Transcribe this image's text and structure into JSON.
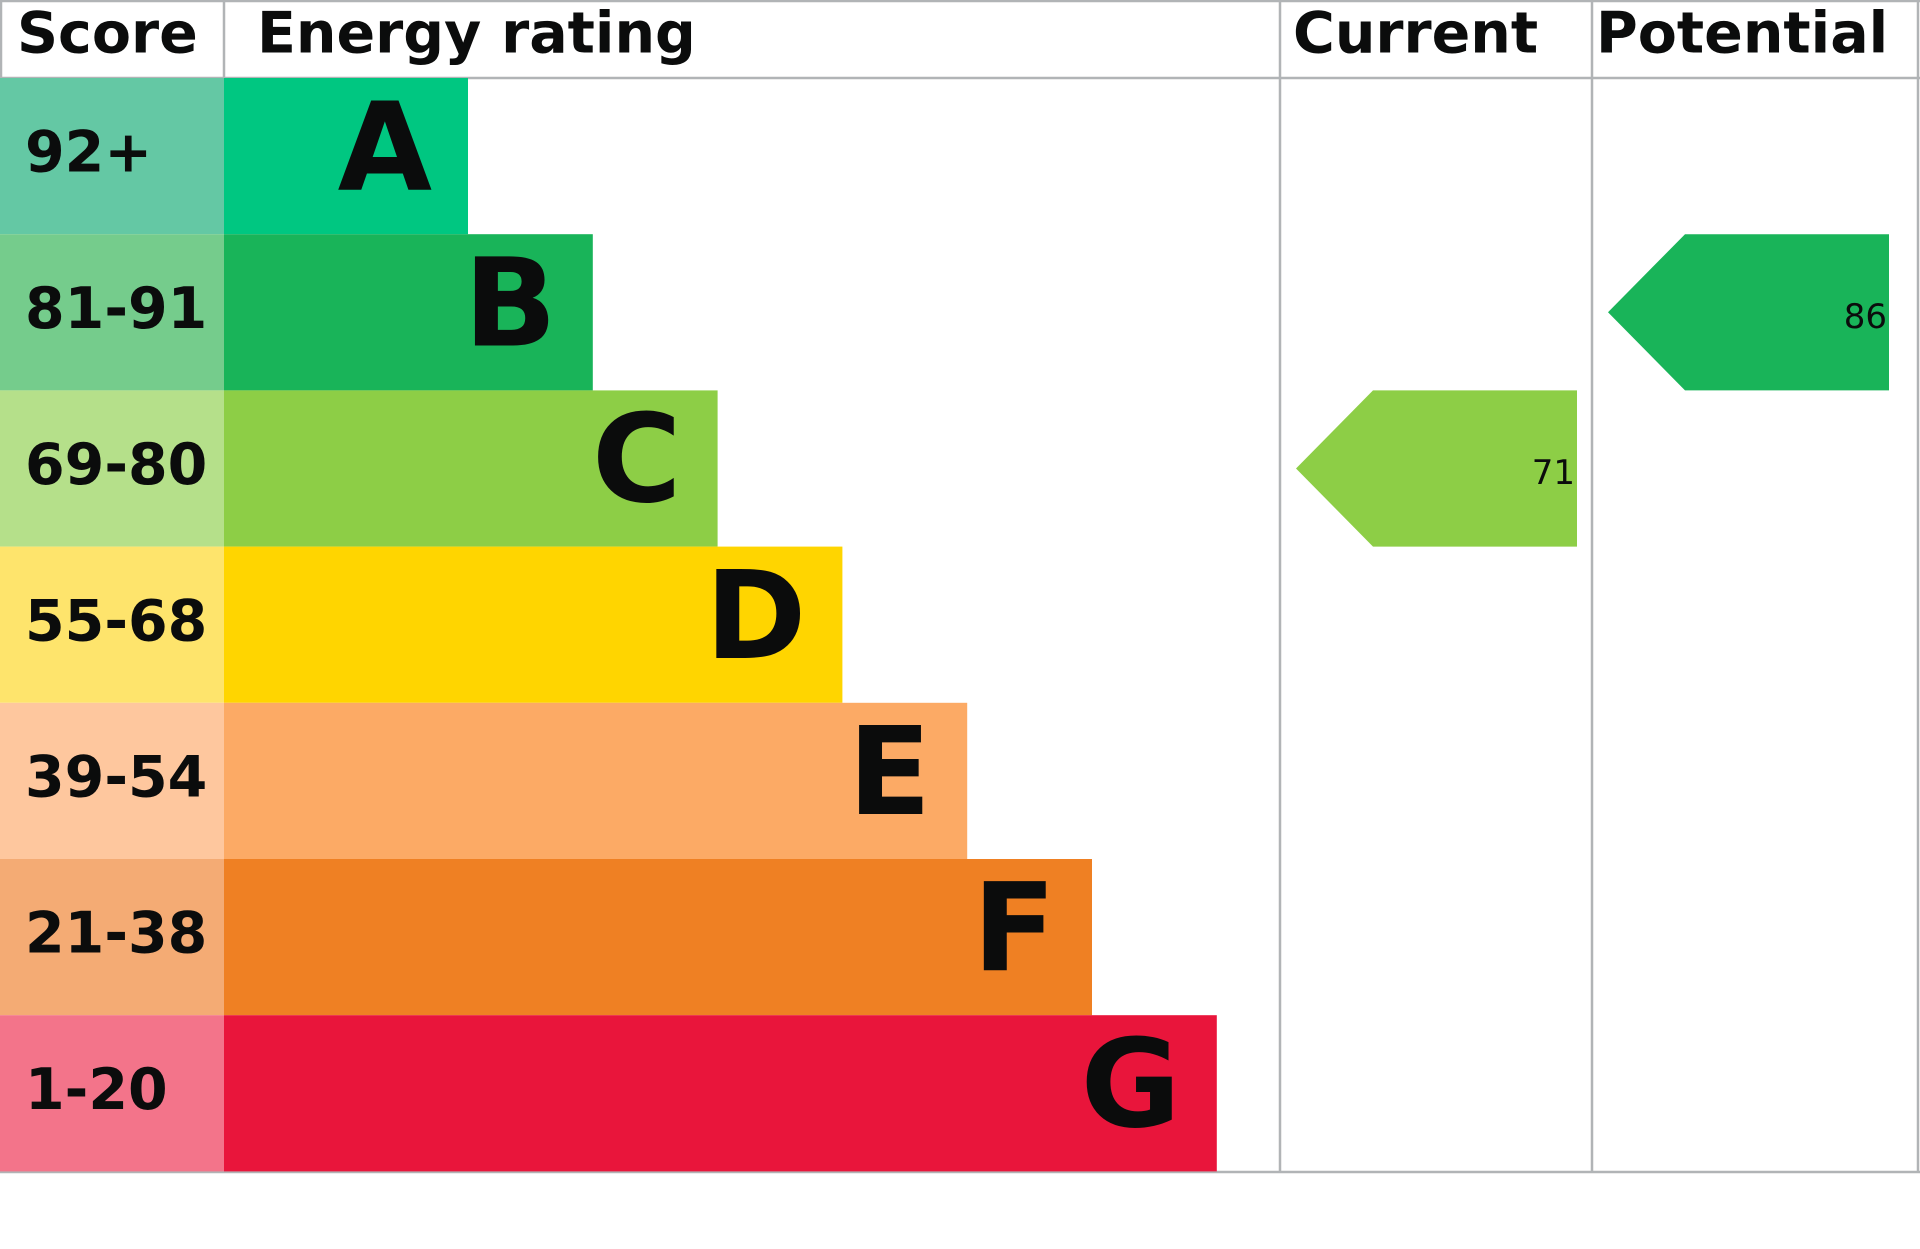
{
  "header": {
    "score": "Score",
    "energy_rating": "Energy rating",
    "current": "Current",
    "potential": "Potential"
  },
  "bands": [
    {
      "score": "92+",
      "letter": "A",
      "score_color": "#64c8a4",
      "color": "#00c781"
    },
    {
      "score": "81-91",
      "letter": "B",
      "score_color": "#75cc8c",
      "color": "#19b459"
    },
    {
      "score": "69-80",
      "letter": "C",
      "score_color": "#b5e08a",
      "color": "#8dce46"
    },
    {
      "score": "55-68",
      "letter": "D",
      "score_color": "#fee46c",
      "color": "#ffd500"
    },
    {
      "score": "39-54",
      "letter": "E",
      "score_color": "#fec79e",
      "color": "#fcaa65"
    },
    {
      "score": "21-38",
      "letter": "F",
      "score_color": "#f4ab74",
      "color": "#ef8023"
    },
    {
      "score": "1-20",
      "letter": "G",
      "score_color": "#f3748a",
      "color": "#e9153b"
    }
  ],
  "current": {
    "value": 71
  },
  "potential": {
    "value": 86
  }
}
